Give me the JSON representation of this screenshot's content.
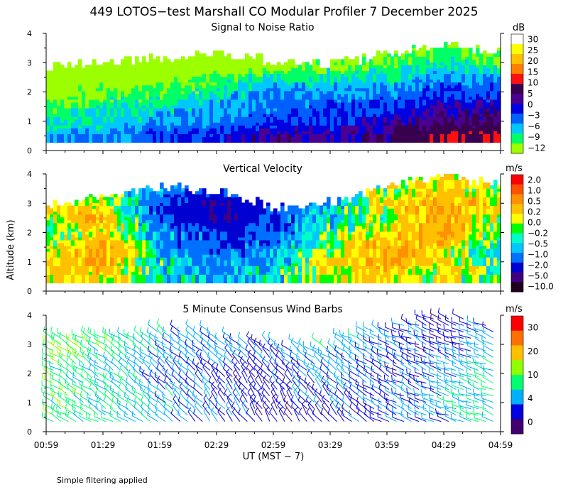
{
  "title": "449 LOTOS−test Marshall CO Modular Profiler  7 December 2025",
  "shared_ylabel": "Altitude (km)",
  "x_axis": {
    "label": "UT  (MST − 7)",
    "tick_labels": [
      "00:59",
      "01:29",
      "01:59",
      "02:29",
      "02:59",
      "03:29",
      "03:59",
      "04:29",
      "04:59"
    ]
  },
  "footnote": "Simple filtering applied",
  "colors": {
    "snr": [
      "#9cff00",
      "#00ff66",
      "#00c8ff",
      "#0060ff",
      "#0000e0",
      "#4a0090",
      "#3a0050",
      "#ff1010",
      "#ff7f00",
      "#ffc000",
      "#ffff00",
      "#ffffff"
    ],
    "vv": [
      "#200020",
      "#400080",
      "#0000d0",
      "#0070ff",
      "#00c8ff",
      "#00ffc8",
      "#00ff00",
      "#ffff00",
      "#ffc000",
      "#ff9000",
      "#ff5000",
      "#ff0000"
    ],
    "wind": [
      "#400070",
      "#0000e0",
      "#00b0ff",
      "#00ff70",
      "#90ff00",
      "#ffc000",
      "#ff7000",
      "#ff0000"
    ]
  },
  "chart_data": [
    {
      "type": "heatmap",
      "title": "Signal to Noise Ratio",
      "ylabel": "Altitude (km)",
      "ylim": [
        0,
        4
      ],
      "y_ticks": [
        0,
        1,
        2,
        3,
        4
      ],
      "colorbar": {
        "unit": "dB",
        "tick_labels": [
          "30",
          "25",
          "20",
          "15",
          "10",
          "5",
          "0",
          "−3",
          "−6",
          "−9",
          "−12"
        ]
      },
      "x": [
        "00:59",
        "01:29",
        "01:59",
        "02:29",
        "02:59",
        "03:29",
        "03:59",
        "04:29",
        "04:59"
      ],
      "data_top_km": [
        2.8,
        3.0,
        3.1,
        3.3,
        3.0,
        2.9,
        3.2,
        3.6,
        3.3
      ],
      "y_levels_km": [
        0.5,
        1.0,
        1.5,
        2.0,
        2.5,
        3.0,
        3.5
      ],
      "values_db": [
        [
          -3,
          -3,
          0,
          0,
          5,
          3,
          5,
          10,
          10
        ],
        [
          -6,
          -6,
          -3,
          -3,
          0,
          0,
          3,
          5,
          5
        ],
        [
          -9,
          -6,
          -6,
          -3,
          -3,
          0,
          0,
          3,
          3
        ],
        [
          -12,
          -9,
          -9,
          -6,
          -3,
          -3,
          -3,
          0,
          0
        ],
        [
          -12,
          -12,
          -12,
          -9,
          -6,
          -6,
          -6,
          -3,
          -3
        ],
        [
          -12,
          -12,
          -12,
          -12,
          -12,
          -9,
          -9,
          -6,
          -9
        ],
        [
          -12,
          -12,
          -12,
          -12,
          -12,
          -12,
          -12,
          -9,
          -12
        ]
      ]
    },
    {
      "type": "heatmap",
      "title": "Vertical Velocity",
      "ylabel": "Altitude (km)",
      "ylim": [
        0,
        4
      ],
      "y_ticks": [
        0,
        1,
        2,
        3,
        4
      ],
      "colorbar": {
        "unit": "m/s",
        "tick_labels": [
          "2.0",
          "1.0",
          "0.5",
          "0.2",
          "0.0",
          "−0.2",
          "−0.5",
          "−1.0",
          "−2.0",
          "−5.0",
          "−10.0"
        ]
      },
      "x": [
        "00:59",
        "01:29",
        "01:59",
        "02:29",
        "02:59",
        "03:29",
        "03:59",
        "04:29",
        "04:59"
      ],
      "data_top_km": [
        2.9,
        3.2,
        3.5,
        3.4,
        2.8,
        3.0,
        3.5,
        3.9,
        3.6
      ],
      "y_levels_km": [
        0.5,
        1.0,
        1.5,
        2.0,
        2.5,
        3.0,
        3.5
      ],
      "values_ms": [
        [
          0.5,
          0.5,
          -0.2,
          -0.5,
          -0.2,
          0.5,
          0.5,
          0.2,
          0.0
        ],
        [
          0.5,
          1.0,
          -0.2,
          -0.5,
          -0.5,
          0.5,
          1.0,
          0.5,
          0.0
        ],
        [
          0.2,
          1.0,
          -0.5,
          -1.0,
          -0.5,
          0.2,
          1.0,
          0.5,
          -0.2
        ],
        [
          0.0,
          0.5,
          -0.5,
          -1.0,
          -1.0,
          0.0,
          0.5,
          1.0,
          0.0
        ],
        [
          0.2,
          1.0,
          -1.0,
          -2.0,
          -1.0,
          -0.2,
          0.2,
          1.0,
          0.2
        ],
        [
          0.5,
          0.5,
          -1.0,
          -2.0,
          -1.0,
          -0.5,
          0.5,
          1.0,
          0.5
        ],
        [
          0.0,
          0.2,
          -0.5,
          -1.0,
          -0.5,
          -0.2,
          0.2,
          0.5,
          0.2
        ]
      ]
    },
    {
      "type": "scatter",
      "title": "5 Minute Consensus Wind Barbs",
      "ylabel": "Altitude (km)",
      "ylim": [
        0,
        4
      ],
      "y_ticks": [
        0,
        1,
        2,
        3,
        4
      ],
      "colorbar": {
        "unit": "m/s",
        "tick_labels": [
          "30",
          "20",
          "10",
          "4",
          "0"
        ]
      },
      "x": [
        "00:59",
        "01:29",
        "01:59",
        "02:29",
        "02:59",
        "03:29",
        "03:59",
        "04:29",
        "04:59"
      ],
      "data_top_km": [
        3.3,
        3.2,
        3.5,
        3.3,
        3.0,
        3.0,
        3.6,
        4.1,
        3.7
      ],
      "y_levels_km": [
        0.5,
        1.0,
        1.5,
        2.0,
        2.5,
        3.0,
        3.5
      ],
      "speed_ms": [
        [
          10,
          8,
          7,
          5,
          3,
          3,
          4,
          6,
          8
        ],
        [
          10,
          9,
          7,
          5,
          4,
          4,
          4,
          6,
          8
        ],
        [
          11,
          9,
          6,
          4,
          3,
          5,
          4,
          6,
          9
        ],
        [
          10,
          8,
          5,
          4,
          3,
          6,
          3,
          5,
          9
        ],
        [
          11,
          9,
          6,
          5,
          4,
          7,
          4,
          4,
          8
        ],
        [
          11,
          10,
          7,
          5,
          5,
          8,
          5,
          3,
          7
        ],
        [
          10,
          9,
          7,
          6,
          5,
          8,
          6,
          3,
          6
        ]
      ],
      "direction_deg": [
        [
          300,
          300,
          310,
          320,
          330,
          320,
          300,
          290,
          290
        ],
        [
          300,
          305,
          310,
          320,
          330,
          320,
          300,
          290,
          290
        ],
        [
          300,
          305,
          310,
          320,
          325,
          315,
          300,
          290,
          290
        ],
        [
          300,
          305,
          310,
          320,
          320,
          310,
          300,
          290,
          290
        ],
        [
          300,
          305,
          310,
          315,
          315,
          305,
          300,
          290,
          290
        ],
        [
          300,
          300,
          305,
          310,
          310,
          300,
          295,
          290,
          290
        ],
        [
          300,
          300,
          305,
          310,
          305,
          300,
          295,
          290,
          290
        ]
      ]
    }
  ]
}
